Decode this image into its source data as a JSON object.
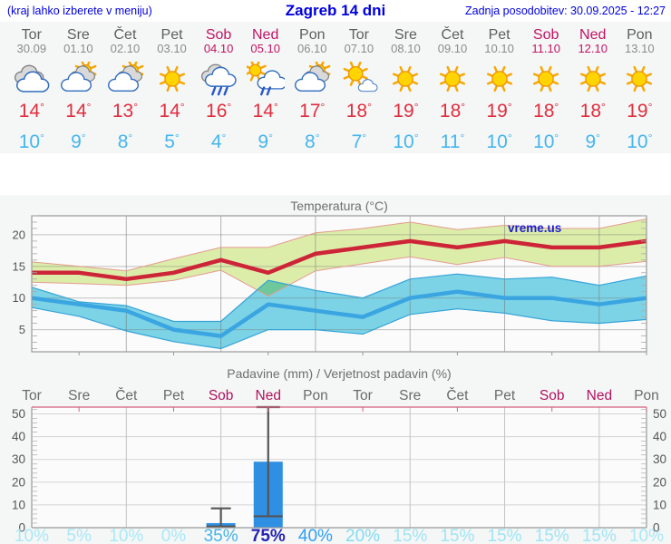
{
  "header": {
    "left_note": "(kraj lahko izberete v meniju)",
    "title": "Zagreb 14 dni",
    "updated": "Zadnja posodobitev: 30.09.2025 - 12:27"
  },
  "deg_symbol": "°",
  "watermark": "vreme.us",
  "colors": {
    "header_blue": "#0000e0",
    "weekend": "#c01565",
    "weekday": "#5e5e5e",
    "high_temp": "#e02e40",
    "low_temp": "#45b6f0",
    "panel_bg": "#f5f6f6",
    "bar_blue": "#2e8fe3",
    "max_band": "#dcedaa",
    "min_band": "#7ed7ea",
    "max_line": "#cd2438",
    "min_line": "#3aa5e0",
    "watermark_blue": "#1d1dcf",
    "precip_axis_pink": "#d4627e"
  },
  "forecast_days": [
    {
      "name": "Tor",
      "date": "30.09",
      "weekend": false,
      "icon": "cloudy",
      "high": "14",
      "low": "10"
    },
    {
      "name": "Sre",
      "date": "01.10",
      "weekend": false,
      "icon": "partly",
      "high": "14",
      "low": "9"
    },
    {
      "name": "Čet",
      "date": "02.10",
      "weekend": false,
      "icon": "partly",
      "high": "13",
      "low": "8"
    },
    {
      "name": "Pet",
      "date": "03.10",
      "weekend": false,
      "icon": "sunny",
      "high": "14",
      "low": "5"
    },
    {
      "name": "Sob",
      "date": "04.10",
      "weekend": true,
      "icon": "rain",
      "high": "16",
      "low": "4"
    },
    {
      "name": "Ned",
      "date": "05.10",
      "weekend": true,
      "icon": "sunshower",
      "high": "14",
      "low": "9"
    },
    {
      "name": "Pon",
      "date": "06.10",
      "weekend": false,
      "icon": "partly",
      "high": "17",
      "low": "8"
    },
    {
      "name": "Tor",
      "date": "07.10",
      "weekend": false,
      "icon": "mostlysunny",
      "high": "18",
      "low": "7"
    },
    {
      "name": "Sre",
      "date": "08.10",
      "weekend": false,
      "icon": "sunny",
      "high": "19",
      "low": "10"
    },
    {
      "name": "Čet",
      "date": "09.10",
      "weekend": false,
      "icon": "sunny",
      "high": "18",
      "low": "11"
    },
    {
      "name": "Pet",
      "date": "10.10",
      "weekend": false,
      "icon": "sunny",
      "high": "19",
      "low": "10"
    },
    {
      "name": "Sob",
      "date": "11.10",
      "weekend": true,
      "icon": "sunny",
      "high": "18",
      "low": "10"
    },
    {
      "name": "Ned",
      "date": "12.10",
      "weekend": true,
      "icon": "sunny",
      "high": "18",
      "low": "9"
    },
    {
      "name": "Pon",
      "date": "13.10",
      "weekend": false,
      "icon": "sunny",
      "high": "19",
      "low": "10"
    }
  ],
  "chart_data": [
    {
      "type": "line",
      "title": "Temperatura (°C)",
      "watermark": "vreme.us",
      "x_count": 14,
      "grid_every_days": 2,
      "ylim": [
        1.5,
        23
      ],
      "yticks": [
        5,
        10,
        15,
        20
      ],
      "legend_position": "none",
      "series": [
        {
          "name": "max temperature",
          "color": "#cd2438",
          "values": [
            14,
            14,
            13,
            14,
            16,
            14,
            17,
            18,
            19,
            18,
            19,
            18,
            18,
            19
          ]
        },
        {
          "name": "max range upper",
          "color": "#dcedaa",
          "values": [
            15.7,
            15,
            14.3,
            16.2,
            18,
            18,
            20.3,
            21,
            22,
            20.8,
            21.5,
            21,
            21,
            22.5
          ]
        },
        {
          "name": "max range lower",
          "color": "#dcedaa",
          "values": [
            12.5,
            12.3,
            12,
            12.8,
            14.4,
            10.3,
            14.3,
            15.4,
            16.5,
            15.3,
            16.4,
            15,
            15,
            15.8
          ]
        },
        {
          "name": "min temperature",
          "color": "#3aa5e0",
          "values": [
            10,
            9,
            8,
            5,
            4,
            9,
            8,
            7,
            10,
            11,
            10,
            10,
            9,
            10
          ]
        },
        {
          "name": "min range upper",
          "color": "#7ed7ea",
          "values": [
            11.7,
            9.4,
            8.8,
            6.3,
            6.3,
            12.8,
            11.2,
            10,
            13,
            13.8,
            13,
            13.3,
            12,
            13.5
          ]
        },
        {
          "name": "min range lower",
          "color": "#7ed7ea",
          "values": [
            8.5,
            7.1,
            4.8,
            3.1,
            2,
            5,
            5,
            4.3,
            7.4,
            8.3,
            7.6,
            6.4,
            6,
            6.6
          ]
        }
      ]
    },
    {
      "type": "bar",
      "title": "Padavine (mm) / Verjetnost padavin (%)",
      "categories": [
        "Tor",
        "Sre",
        "Čet",
        "Pet",
        "Sob",
        "Ned",
        "Pon",
        "Tor",
        "Sre",
        "Čet",
        "Pet",
        "Sob",
        "Ned",
        "Pon"
      ],
      "weekend_indices": [
        4,
        5,
        11,
        12
      ],
      "ylim": [
        0,
        53
      ],
      "yticks": [
        0,
        10,
        20,
        30,
        40,
        50
      ],
      "values": [
        0,
        0,
        0,
        0,
        2,
        29,
        0,
        0,
        0,
        0,
        0,
        0,
        0,
        0
      ],
      "whiskers": [
        {
          "day": 4,
          "low": 0.5,
          "high": 8.5
        },
        {
          "day": 5,
          "low": 5,
          "high": 53
        }
      ],
      "percents": [
        "10%",
        "5%",
        "10%",
        "0%",
        "35%",
        "75%",
        "40%",
        "20%",
        "15%",
        "15%",
        "15%",
        "15%",
        "15%",
        "10%"
      ],
      "percent_colors": [
        "#a8e9f7",
        "#a8e9f7",
        "#a8e9f7",
        "#a8e9f7",
        "#47b4e9",
        "#2424b2",
        "#2f9ff2",
        "#83dcf2",
        "#9fe5f5",
        "#9fe5f5",
        "#9fe5f5",
        "#9fe5f5",
        "#9fe5f5",
        "#a8e9f7"
      ]
    }
  ]
}
